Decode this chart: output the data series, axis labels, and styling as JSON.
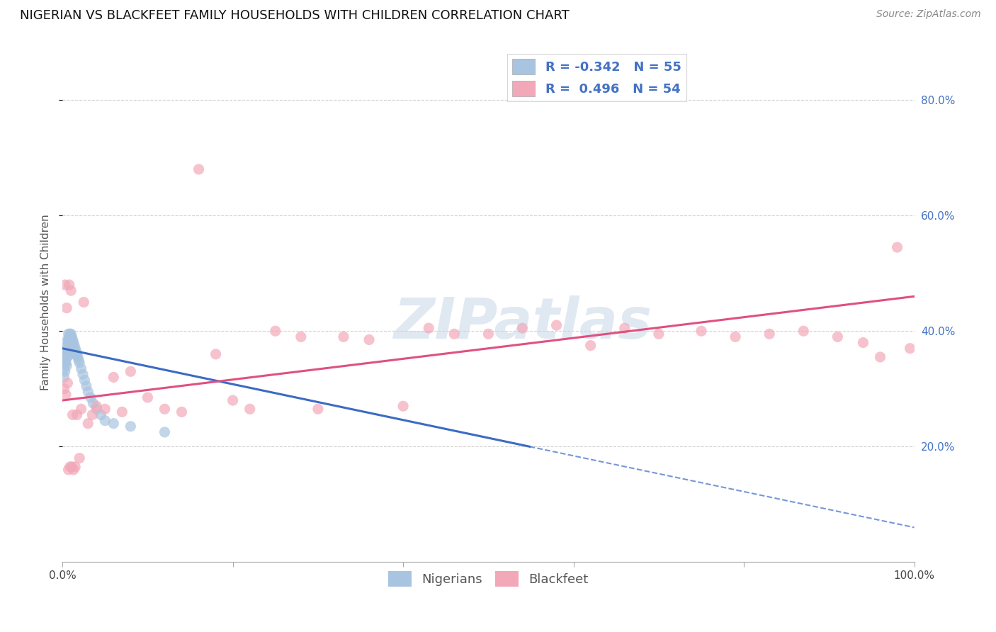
{
  "title": "NIGERIAN VS BLACKFEET FAMILY HOUSEHOLDS WITH CHILDREN CORRELATION CHART",
  "source": "Source: ZipAtlas.com",
  "ylabel": "Family Households with Children",
  "watermark": "ZIPatlas",
  "legend_nigerian_R": -0.342,
  "legend_nigerian_N": 55,
  "legend_blackfeet_R": 0.496,
  "legend_blackfeet_N": 54,
  "xlim": [
    0.0,
    1.0
  ],
  "ylim": [
    0.0,
    0.9
  ],
  "background_color": "#ffffff",
  "grid_color": "#cccccc",
  "nigerian_scatter_color": "#a8c4e0",
  "blackfeet_scatter_color": "#f2a8b8",
  "nigerian_line_color": "#3b6bc4",
  "blackfeet_line_color": "#e05080",
  "nigerian_points_x": [
    0.002,
    0.002,
    0.003,
    0.003,
    0.003,
    0.004,
    0.004,
    0.004,
    0.005,
    0.005,
    0.005,
    0.005,
    0.006,
    0.006,
    0.006,
    0.006,
    0.007,
    0.007,
    0.007,
    0.007,
    0.008,
    0.008,
    0.008,
    0.009,
    0.009,
    0.01,
    0.01,
    0.01,
    0.011,
    0.011,
    0.012,
    0.012,
    0.013,
    0.013,
    0.014,
    0.014,
    0.015,
    0.016,
    0.017,
    0.018,
    0.019,
    0.02,
    0.022,
    0.024,
    0.026,
    0.028,
    0.03,
    0.033,
    0.036,
    0.04,
    0.045,
    0.05,
    0.06,
    0.08,
    0.12
  ],
  "nigerian_points_y": [
    0.335,
    0.32,
    0.35,
    0.33,
    0.345,
    0.36,
    0.355,
    0.345,
    0.375,
    0.365,
    0.355,
    0.34,
    0.385,
    0.375,
    0.365,
    0.355,
    0.395,
    0.385,
    0.37,
    0.36,
    0.39,
    0.38,
    0.365,
    0.395,
    0.385,
    0.395,
    0.385,
    0.37,
    0.39,
    0.375,
    0.385,
    0.37,
    0.38,
    0.365,
    0.375,
    0.36,
    0.37,
    0.365,
    0.36,
    0.355,
    0.35,
    0.345,
    0.335,
    0.325,
    0.315,
    0.305,
    0.295,
    0.285,
    0.275,
    0.265,
    0.255,
    0.245,
    0.24,
    0.235,
    0.225
  ],
  "blackfeet_points_x": [
    0.002,
    0.003,
    0.004,
    0.005,
    0.006,
    0.007,
    0.008,
    0.009,
    0.01,
    0.011,
    0.012,
    0.013,
    0.015,
    0.017,
    0.02,
    0.022,
    0.025,
    0.03,
    0.035,
    0.04,
    0.05,
    0.06,
    0.07,
    0.08,
    0.1,
    0.12,
    0.14,
    0.16,
    0.18,
    0.2,
    0.22,
    0.25,
    0.28,
    0.3,
    0.33,
    0.36,
    0.4,
    0.43,
    0.46,
    0.5,
    0.54,
    0.58,
    0.62,
    0.66,
    0.7,
    0.75,
    0.79,
    0.83,
    0.87,
    0.91,
    0.94,
    0.96,
    0.98,
    0.995
  ],
  "blackfeet_points_y": [
    0.3,
    0.48,
    0.29,
    0.44,
    0.31,
    0.16,
    0.48,
    0.165,
    0.47,
    0.165,
    0.255,
    0.16,
    0.165,
    0.255,
    0.18,
    0.265,
    0.45,
    0.24,
    0.255,
    0.27,
    0.265,
    0.32,
    0.26,
    0.33,
    0.285,
    0.265,
    0.26,
    0.68,
    0.36,
    0.28,
    0.265,
    0.4,
    0.39,
    0.265,
    0.39,
    0.385,
    0.27,
    0.405,
    0.395,
    0.395,
    0.405,
    0.41,
    0.375,
    0.405,
    0.395,
    0.4,
    0.39,
    0.395,
    0.4,
    0.39,
    0.38,
    0.355,
    0.545,
    0.37
  ],
  "nigerian_line_x0": 0.0,
  "nigerian_line_x1": 1.0,
  "nigerian_line_y0": 0.37,
  "nigerian_line_y1": 0.06,
  "blackfeet_line_x0": 0.0,
  "blackfeet_line_x1": 1.0,
  "blackfeet_line_y0": 0.28,
  "blackfeet_line_y1": 0.46,
  "title_fontsize": 13,
  "axis_label_fontsize": 11,
  "tick_fontsize": 11,
  "legend_fontsize": 13
}
